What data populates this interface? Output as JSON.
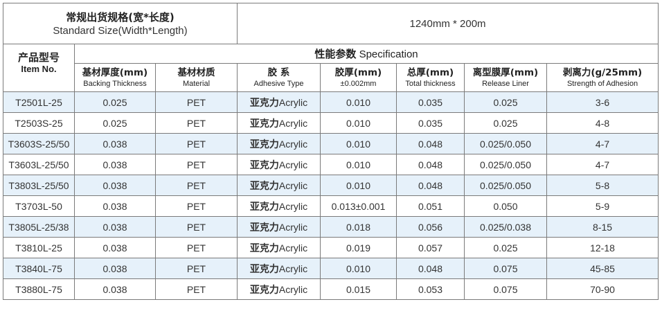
{
  "standard_size": {
    "label_zh": "常规出货规格(宽*长度)",
    "label_en": "Standard Size(Width*Length)",
    "value": "1240mm * 200m"
  },
  "header": {
    "item_zh": "产品型号",
    "item_en": "Item No.",
    "spec_zh": "性能参数",
    "spec_en": "Specification",
    "columns": [
      {
        "zh": "基材厚度(mm)",
        "en": "Backing Thickness"
      },
      {
        "zh": "基材材质",
        "en": "Material"
      },
      {
        "zh": "胶 系",
        "en": "Adhesive Type"
      },
      {
        "zh": "胶厚(mm)",
        "en": "±0.002mm"
      },
      {
        "zh": "总厚(mm)",
        "en": "Total thickness"
      },
      {
        "zh": "离型膜厚(mm)",
        "en": "Release Liner"
      },
      {
        "zh": "剥离力(g/25mm)",
        "en": "Strength of Adhesion"
      }
    ]
  },
  "rows": [
    {
      "item": "T2501L-25",
      "backing": "0.025",
      "material": "PET",
      "adhesive_zh": "亚克力",
      "adhesive_en": "Acrylic",
      "glue": "0.010",
      "total": "0.035",
      "liner": "0.025",
      "adhesion": "3-6"
    },
    {
      "item": "T2503S-25",
      "backing": "0.025",
      "material": "PET",
      "adhesive_zh": "亚克力",
      "adhesive_en": "Acrylic",
      "glue": "0.010",
      "total": "0.035",
      "liner": "0.025",
      "adhesion": "4-8"
    },
    {
      "item": "T3603S-25/50",
      "backing": "0.038",
      "material": "PET",
      "adhesive_zh": "亚克力",
      "adhesive_en": "Acrylic",
      "glue": "0.010",
      "total": "0.048",
      "liner": "0.025/0.050",
      "adhesion": "4-7"
    },
    {
      "item": "T3603L-25/50",
      "backing": "0.038",
      "material": "PET",
      "adhesive_zh": "亚克力",
      "adhesive_en": "Acrylic",
      "glue": "0.010",
      "total": "0.048",
      "liner": "0.025/0.050",
      "adhesion": "4-7"
    },
    {
      "item": "T3803L-25/50",
      "backing": "0.038",
      "material": "PET",
      "adhesive_zh": "亚克力",
      "adhesive_en": "Acrylic",
      "glue": "0.010",
      "total": "0.048",
      "liner": "0.025/0.050",
      "adhesion": "5-8"
    },
    {
      "item": "T3703L-50",
      "backing": "0.038",
      "material": "PET",
      "adhesive_zh": "亚克力",
      "adhesive_en": "Acrylic",
      "glue": "0.013±0.001",
      "total": "0.051",
      "liner": "0.050",
      "adhesion": "5-9"
    },
    {
      "item": "T3805L-25/38",
      "backing": "0.038",
      "material": "PET",
      "adhesive_zh": "亚克力",
      "adhesive_en": "Acrylic",
      "glue": "0.018",
      "total": "0.056",
      "liner": "0.025/0.038",
      "adhesion": "8-15"
    },
    {
      "item": "T3810L-25",
      "backing": "0.038",
      "material": "PET",
      "adhesive_zh": "亚克力",
      "adhesive_en": "Acrylic",
      "glue": "0.019",
      "total": "0.057",
      "liner": "0.025",
      "adhesion": "12-18"
    },
    {
      "item": "T3840L-75",
      "backing": "0.038",
      "material": "PET",
      "adhesive_zh": "亚克力",
      "adhesive_en": "Acrylic",
      "glue": "0.010",
      "total": "0.048",
      "liner": "0.075",
      "adhesion": "45-85"
    },
    {
      "item": "T3880L-75",
      "backing": "0.038",
      "material": "PET",
      "adhesive_zh": "亚克力",
      "adhesive_en": "Acrylic",
      "glue": "0.015",
      "total": "0.053",
      "liner": "0.075",
      "adhesion": "70-90"
    }
  ],
  "colors": {
    "row_shade": "#e6f1fa",
    "row_plain": "#ffffff",
    "border": "#7a7a7a"
  }
}
